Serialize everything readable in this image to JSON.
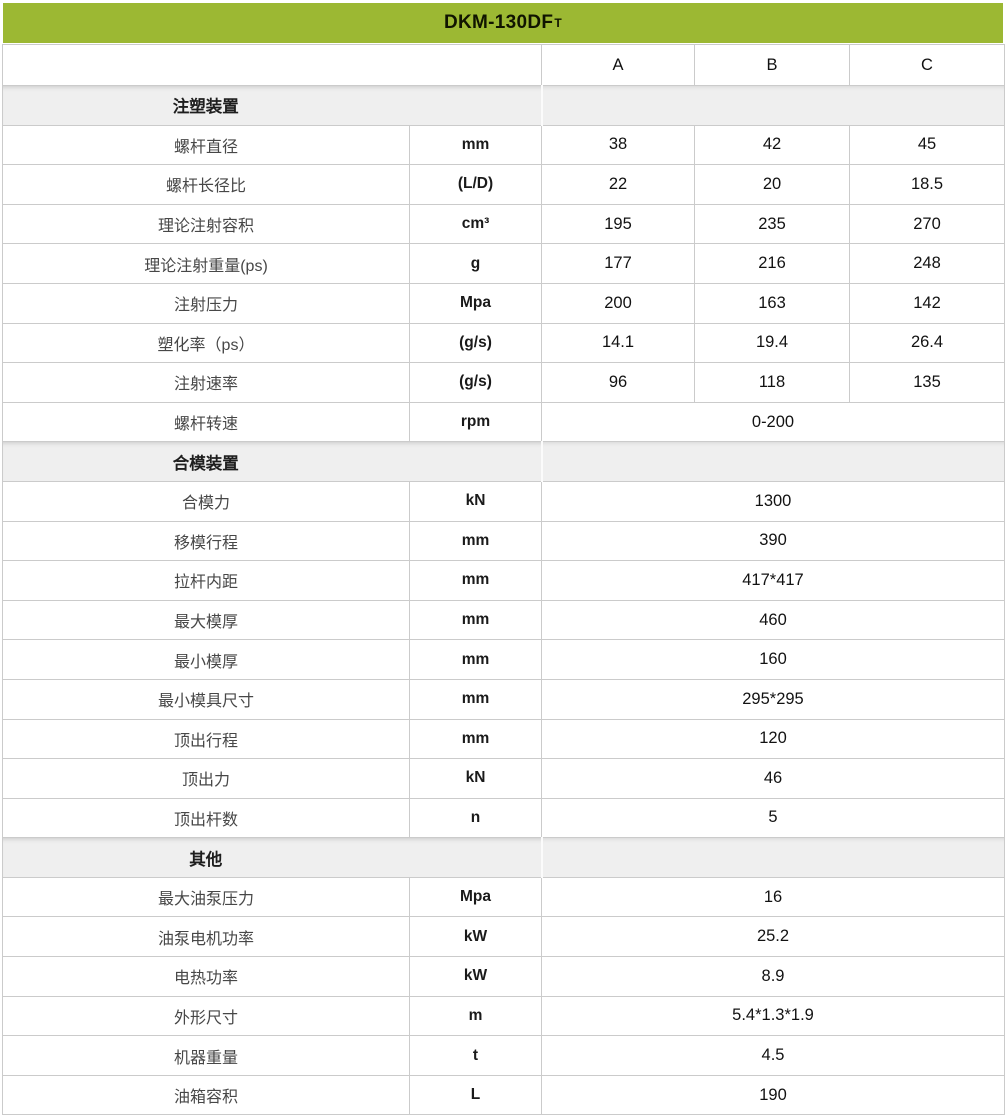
{
  "title": {
    "model": "DKM-130DF",
    "model_sup": "T"
  },
  "columns": [
    "A",
    "B",
    "C"
  ],
  "colors": {
    "header_green": "#9cb833",
    "section_gray": "#efefef",
    "border_gray": "#cbcbcb"
  },
  "sections": [
    {
      "name": "注塑装置",
      "rows": [
        {
          "label": "螺杆直径",
          "unit": "mm",
          "values": [
            "38",
            "42",
            "45"
          ]
        },
        {
          "label": "螺杆长径比",
          "unit": "(L/D)",
          "values": [
            "22",
            "20",
            "18.5"
          ]
        },
        {
          "label": "理论注射容积",
          "unit": "cm³",
          "values": [
            "195",
            "235",
            "270"
          ]
        },
        {
          "label": "理论注射重量(ps)",
          "unit": "g",
          "values": [
            "177",
            "216",
            "248"
          ]
        },
        {
          "label": "注射压力",
          "unit": "Mpa",
          "values": [
            "200",
            "163",
            "142"
          ]
        },
        {
          "label": "塑化率（ps）",
          "unit": "(g/s)",
          "values": [
            "14.1",
            "19.4",
            "26.4"
          ]
        },
        {
          "label": "注射速率",
          "unit": "(g/s)",
          "values": [
            "96",
            "118",
            "135"
          ]
        },
        {
          "label": "螺杆转速",
          "unit": "rpm",
          "values": [
            "0-200"
          ]
        }
      ]
    },
    {
      "name": "合模装置",
      "rows": [
        {
          "label": "合模力",
          "unit": "kN",
          "values": [
            "1300"
          ]
        },
        {
          "label": "移模行程",
          "unit": "mm",
          "values": [
            "390"
          ]
        },
        {
          "label": "拉杆内距",
          "unit": "mm",
          "values": [
            "417*417"
          ]
        },
        {
          "label": "最大模厚",
          "unit": "mm",
          "values": [
            "460"
          ]
        },
        {
          "label": "最小模厚",
          "unit": "mm",
          "values": [
            "160"
          ]
        },
        {
          "label": "最小模具尺寸",
          "unit": "mm",
          "values": [
            "295*295"
          ]
        },
        {
          "label": "顶出行程",
          "unit": "mm",
          "values": [
            "120"
          ]
        },
        {
          "label": "顶出力",
          "unit": "kN",
          "values": [
            "46"
          ]
        },
        {
          "label": "顶出杆数",
          "unit": "n",
          "values": [
            "5"
          ]
        }
      ]
    },
    {
      "name": "其他",
      "rows": [
        {
          "label": "最大油泵压力",
          "unit": "Mpa",
          "values": [
            "16"
          ]
        },
        {
          "label": "油泵电机功率",
          "unit": "kW",
          "values": [
            "25.2"
          ]
        },
        {
          "label": "电热功率",
          "unit": "kW",
          "values": [
            "8.9"
          ]
        },
        {
          "label": "外形尺寸",
          "unit": "m",
          "values": [
            "5.4*1.3*1.9"
          ]
        },
        {
          "label": "机器重量",
          "unit": "t",
          "values": [
            "4.5"
          ]
        },
        {
          "label": "油箱容积",
          "unit": "L",
          "values": [
            "190"
          ]
        }
      ]
    }
  ]
}
